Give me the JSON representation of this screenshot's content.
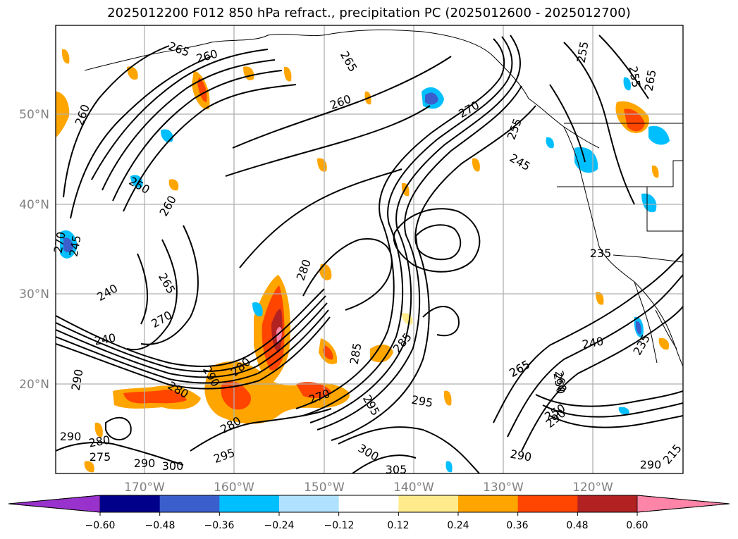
{
  "title": "2025012200 F012 850 hPa refract., precipitation PC (2025012600 - 2025012700)",
  "map": {
    "lat_labels": [
      "50°N",
      "40°N",
      "30°N",
      "20°N"
    ],
    "lon_labels": [
      "170°W",
      "160°W",
      "150°W",
      "140°W",
      "130°W",
      "120°W"
    ],
    "grid": true
  },
  "contour_labels": [
    "265",
    "260",
    "265",
    "260",
    "255",
    "255",
    "245",
    "255",
    "265",
    "260",
    "250",
    "270",
    "260",
    "245",
    "270",
    "265",
    "240",
    "240",
    "270",
    "280",
    "280",
    "290",
    "290",
    "280",
    "270",
    "285",
    "285",
    "295",
    "295",
    "300",
    "305",
    "280",
    "280",
    "295",
    "290",
    "290",
    "290",
    "265",
    "260",
    "250",
    "240",
    "235",
    "235",
    "215",
    "290",
    "275",
    "290",
    "300",
    "265",
    "250"
  ],
  "colorbar": {
    "ticks": [
      "−0.60",
      "−0.48",
      "−0.36",
      "−0.24",
      "−0.12",
      "0.12",
      "0.24",
      "0.36",
      "0.48",
      "0.60"
    ],
    "colors": [
      "#9932cc",
      "#00008b",
      "#3a5fcd",
      "#00bfff",
      "#b0e2ff",
      "#ffffff",
      "#ffeb8c",
      "#ffa500",
      "#ff4500",
      "#b22222",
      "#ff85a8"
    ],
    "extend": "both"
  }
}
